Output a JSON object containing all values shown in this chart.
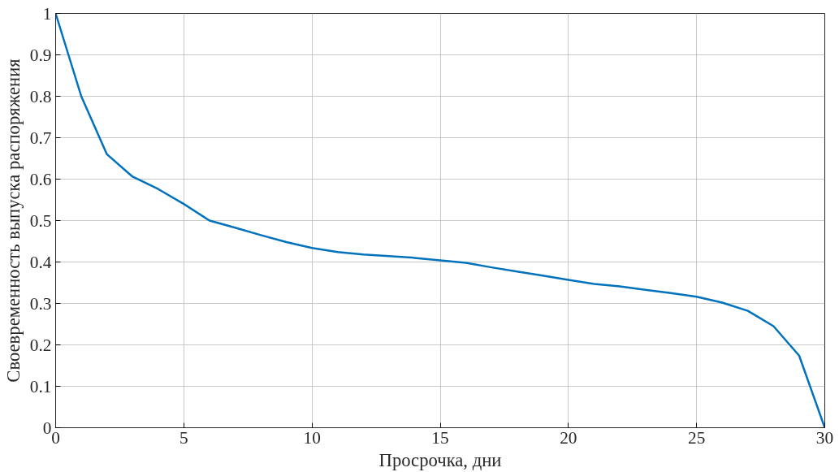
{
  "chart_data": {
    "type": "line",
    "xlabel": "Просрочка, дни",
    "ylabel": "Своевременность выпуска распоряжения",
    "x": [
      0,
      1,
      2,
      3,
      4,
      5,
      6,
      7,
      8,
      9,
      10,
      11,
      12,
      13,
      14,
      15,
      16,
      17,
      18,
      19,
      20,
      21,
      22,
      23,
      24,
      25,
      26,
      27,
      28,
      29,
      30
    ],
    "series": [
      {
        "color": "#0072bd",
        "values": [
          1.0,
          0.8,
          0.66,
          0.606,
          0.576,
          0.54,
          0.5,
          0.483,
          0.465,
          0.448,
          0.434,
          0.424,
          0.418,
          0.414,
          0.41,
          0.404,
          0.398,
          0.387,
          0.377,
          0.367,
          0.357,
          0.347,
          0.341,
          0.333,
          0.325,
          0.316,
          0.302,
          0.282,
          0.245,
          0.174,
          0.0
        ]
      }
    ],
    "xlim": [
      0,
      30
    ],
    "xticks": [
      0,
      5,
      10,
      15,
      20,
      25,
      30
    ],
    "ylim": [
      0,
      1
    ],
    "yticks": [
      0,
      0.1,
      0.2,
      0.3,
      0.4,
      0.5,
      0.6,
      0.7,
      0.8,
      0.9,
      1
    ],
    "grid": true,
    "marker": "none",
    "line_style": "solid"
  }
}
